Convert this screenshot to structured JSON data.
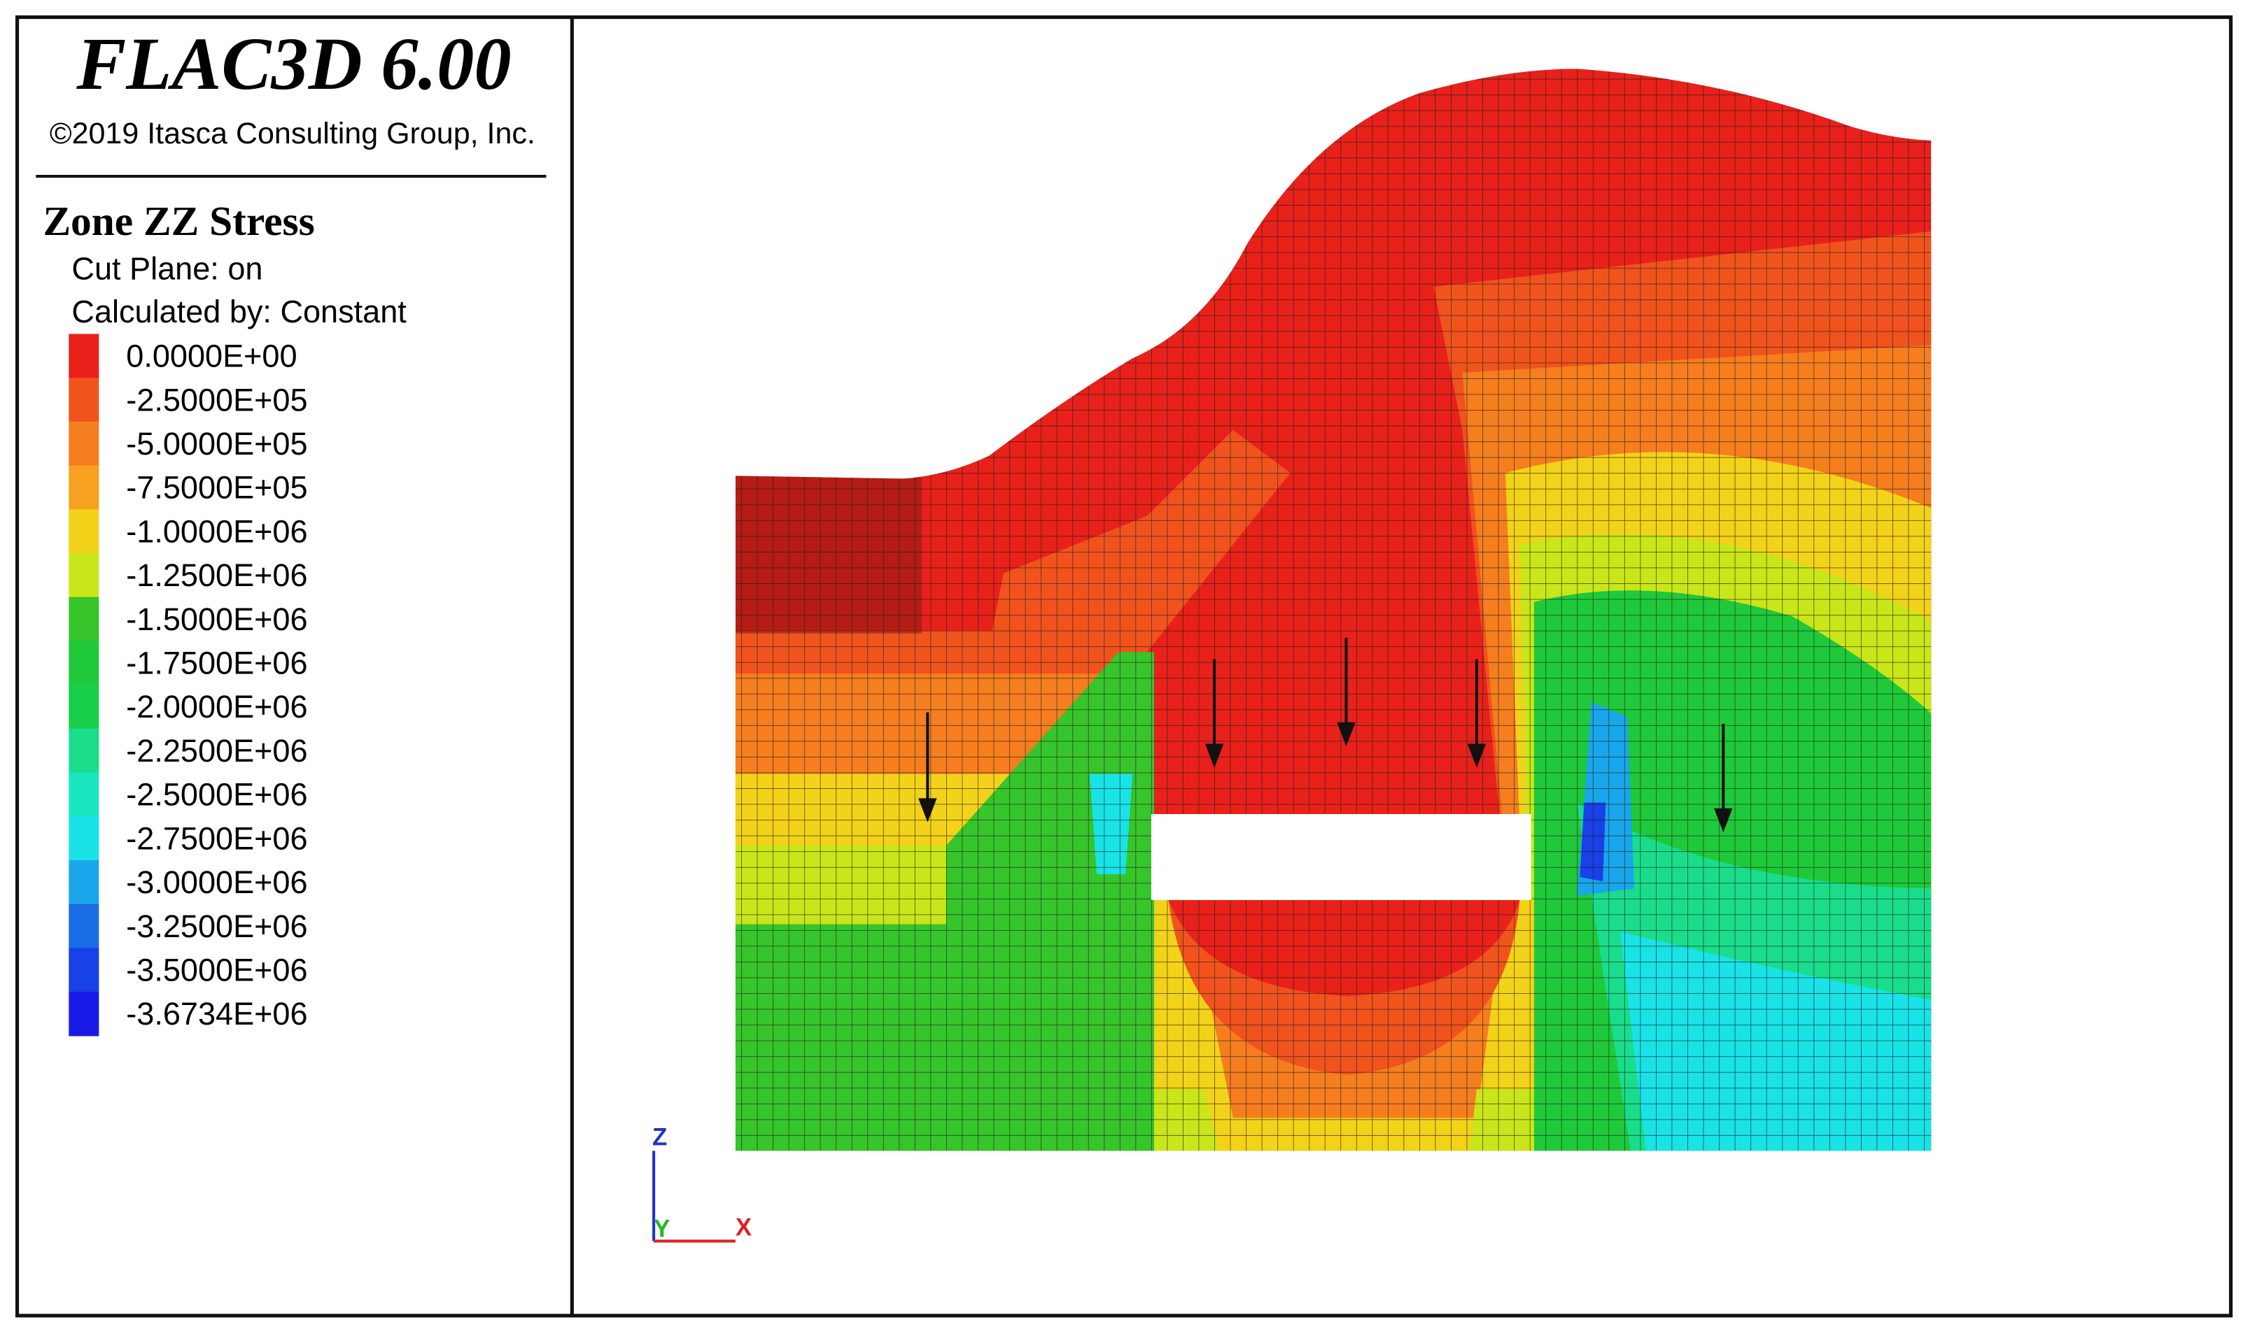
{
  "header": {
    "title": "FLAC3D 6.00",
    "copyright": "©2019 Itasca Consulting Group, Inc."
  },
  "legend": {
    "title": "Zone ZZ Stress",
    "lines": [
      "Cut Plane: on",
      "Calculated by: Constant"
    ],
    "entries": [
      {
        "label": "0.0000E+00",
        "color": "#e8211b"
      },
      {
        "label": "-2.5000E+05",
        "color": "#f1531c"
      },
      {
        "label": "-5.0000E+05",
        "color": "#f57e1f"
      },
      {
        "label": "-7.5000E+05",
        "color": "#f6a11f"
      },
      {
        "label": "-1.0000E+06",
        "color": "#f3d21a"
      },
      {
        "label": "-1.2500E+06",
        "color": "#c9e61a"
      },
      {
        "label": "-1.5000E+06",
        "color": "#36c52a"
      },
      {
        "label": "-1.7500E+06",
        "color": "#1fc93a"
      },
      {
        "label": "-2.0000E+06",
        "color": "#19cf4a"
      },
      {
        "label": "-2.2500E+06",
        "color": "#19dd8a"
      },
      {
        "label": "-2.5000E+06",
        "color": "#1ae6c0"
      },
      {
        "label": "-2.7500E+06",
        "color": "#19e3e6"
      },
      {
        "label": "-3.0000E+06",
        "color": "#1aa6ea"
      },
      {
        "label": "-3.2500E+06",
        "color": "#1a6de6"
      },
      {
        "label": "-3.5000E+06",
        "color": "#1a40e8"
      },
      {
        "label": "-3.6734E+06",
        "color": "#1a1ae8"
      }
    ]
  },
  "axes": {
    "z": "Z",
    "y": "Y",
    "x": "X"
  }
}
